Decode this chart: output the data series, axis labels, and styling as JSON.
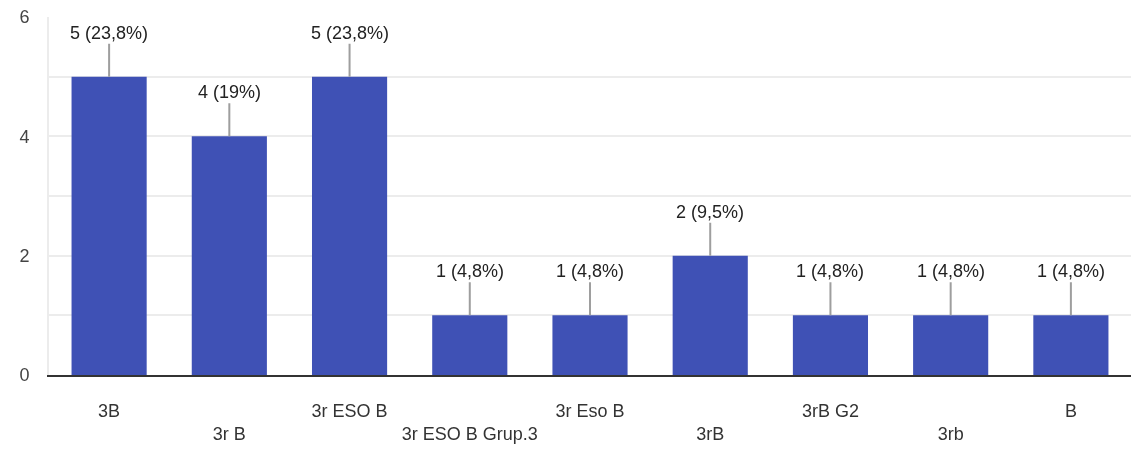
{
  "chart_data": {
    "type": "bar",
    "categories": [
      "3B",
      "3r B",
      "3r ESO B",
      "3r ESO B Grup.3",
      "3r Eso B",
      "3rB",
      "3rB G2",
      "3rb",
      "B"
    ],
    "values": [
      5,
      4,
      5,
      1,
      1,
      2,
      1,
      1,
      1
    ],
    "color": "#3f51b5",
    "value_labels": [
      "5 (23,8%)",
      "4 (19%)",
      "5 (23,8%)",
      "1 (4,8%)",
      "1 (4,8%)",
      "2 (9,5%)",
      "1 (4,8%)",
      "1 (4,8%)",
      "1 (4,8%)"
    ],
    "ylim": [
      0,
      6
    ],
    "yticks": [
      0,
      {
        "value": 1,
        "label": null
      },
      2,
      {
        "value": 3,
        "label": null
      },
      4,
      {
        "value": 5,
        "label": null
      },
      6
    ],
    "grid": "y"
  }
}
